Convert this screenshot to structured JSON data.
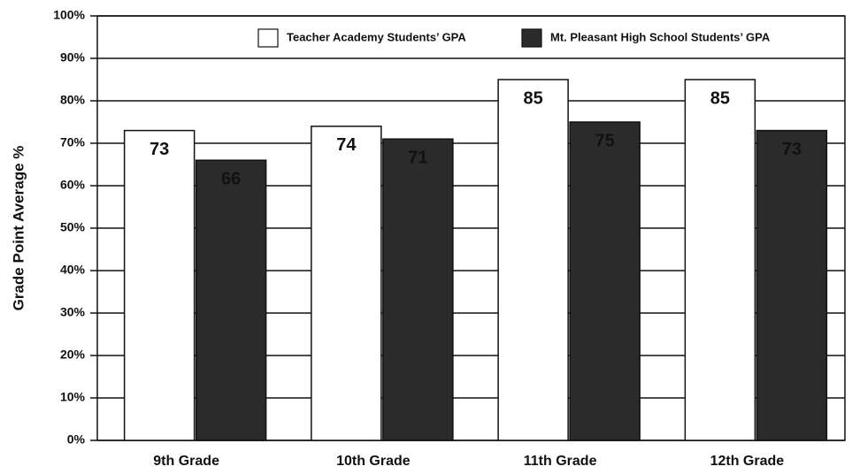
{
  "chart_data": {
    "type": "bar",
    "y_label": "Grade Point Average %",
    "categories": [
      "9th Grade",
      "10th Grade",
      "11th Grade",
      "12th Grade"
    ],
    "series": [
      {
        "name": "Teacher Academy Students’ GPA",
        "color": "#ffffff",
        "values": [
          73,
          74,
          85,
          85
        ]
      },
      {
        "name": "Mt. Pleasant High School Students’ GPA",
        "color": "#2b2b2b",
        "values": [
          66,
          71,
          75,
          73
        ]
      }
    ],
    "ylim": [
      0,
      100
    ],
    "yticks": [
      {
        "value": 0,
        "label": "0%"
      },
      {
        "value": 10,
        "label": "10%"
      },
      {
        "value": 20,
        "label": "20%"
      },
      {
        "value": 30,
        "label": "30%"
      },
      {
        "value": 40,
        "label": "40%"
      },
      {
        "value": 50,
        "label": "50%"
      },
      {
        "value": 60,
        "label": "60%"
      },
      {
        "value": 70,
        "label": "70%"
      },
      {
        "value": 80,
        "label": "80%"
      },
      {
        "value": 90,
        "label": "90%"
      },
      {
        "value": 100,
        "label": "100%"
      }
    ],
    "grid": true,
    "legend": "top"
  }
}
